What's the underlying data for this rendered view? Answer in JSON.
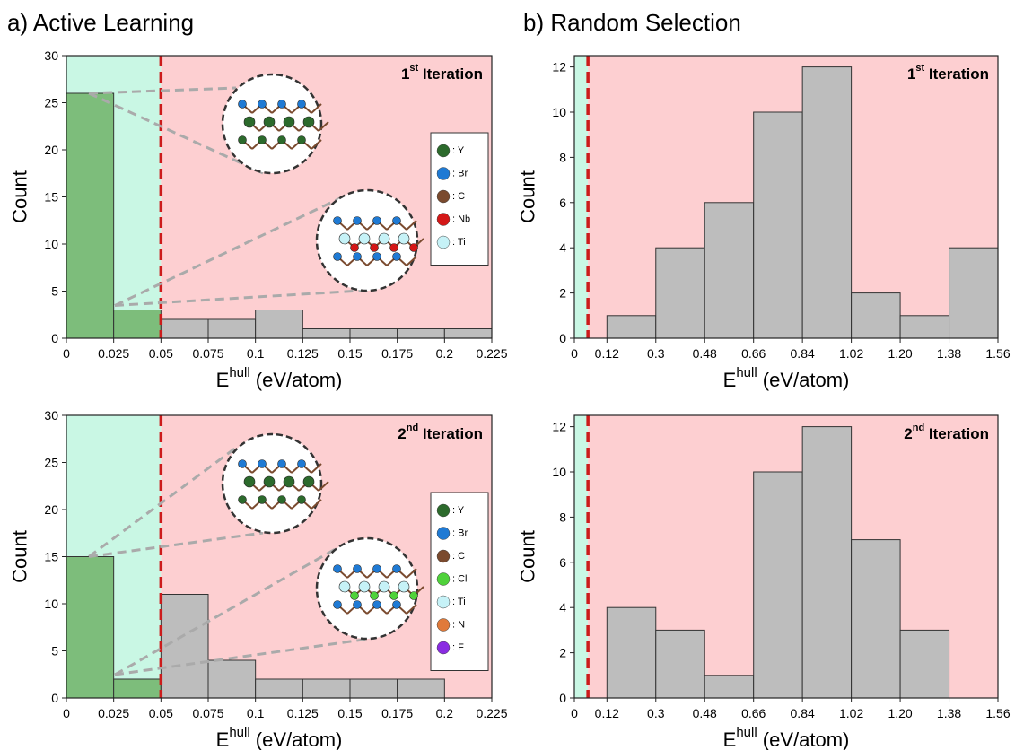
{
  "panel_titles": [
    "a) Active Learning",
    "b) Random Selection"
  ],
  "chart_data": [
    {
      "type": "histogram",
      "title": [
        "1",
        "st",
        " Iteration"
      ],
      "xlabel": [
        "E",
        "hull",
        " (eV/atom)"
      ],
      "ylabel": "Count",
      "bins": [
        0,
        0.025,
        0.05,
        0.075,
        0.1,
        0.125,
        0.15,
        0.175,
        0.2,
        0.225
      ],
      "values": [
        26,
        3,
        2,
        2,
        3,
        1,
        1,
        1,
        1
      ],
      "xlim": [
        0,
        0.225
      ],
      "xticks": [
        0,
        0.025,
        0.05,
        0.075,
        0.1,
        0.125,
        0.15,
        0.175,
        0.2,
        0.225
      ],
      "ylim": [
        0,
        30
      ],
      "yticks": [
        0,
        5,
        10,
        15,
        20,
        25,
        30
      ],
      "threshold": 0.05,
      "bar_color": "#bdbdbd",
      "below_threshold_color": "#7dbd7b",
      "stable_region_color": "#c9f7e4",
      "unstable_region_color": "#fdcfd1",
      "threshold_color": "#cc1b1b",
      "legend": [
        {
          "label": ": Y",
          "color": "#2c6a2c"
        },
        {
          "label": ": Br",
          "color": "#1f7ad4"
        },
        {
          "label": ": C",
          "color": "#7a4a2e"
        },
        {
          "label": ": Nb",
          "color": "#d41717"
        },
        {
          "label": ": Ti",
          "color": "#c6f2f7"
        }
      ]
    },
    {
      "type": "histogram",
      "title": [
        "1",
        "st",
        " Iteration"
      ],
      "xlabel": [
        "E",
        "hull",
        " (eV/atom)"
      ],
      "ylabel": "Count",
      "bins": [
        0.12,
        0.3,
        0.48,
        0.66,
        0.84,
        1.02,
        1.2,
        1.38,
        1.56
      ],
      "values": [
        1,
        4,
        6,
        10,
        12,
        2,
        1,
        4
      ],
      "xlim": [
        0,
        1.56
      ],
      "xticks": [
        0,
        0.12,
        0.3,
        0.48,
        0.66,
        0.84,
        1.02,
        {
          "value": 1.2,
          "label": "1.20"
        },
        1.38,
        1.56
      ],
      "ylim": [
        0,
        12.5
      ],
      "yticks": [
        0,
        2,
        4,
        6,
        8,
        10,
        12
      ],
      "threshold": 0.05,
      "bar_color": "#bdbdbd",
      "below_threshold_color": "#7dbd7b",
      "stable_region_color": "#c9f7e4",
      "unstable_region_color": "#fdcfd1",
      "threshold_color": "#cc1b1b"
    },
    {
      "type": "histogram",
      "title": [
        "2",
        "nd",
        " Iteration"
      ],
      "xlabel": [
        "E",
        "hull",
        " (eV/atom)"
      ],
      "ylabel": "Count",
      "bins": [
        0,
        0.025,
        0.05,
        0.075,
        0.1,
        0.125,
        0.15,
        0.175,
        0.2
      ],
      "values": [
        15,
        2,
        11,
        4,
        2,
        2,
        2,
        2
      ],
      "xlim": [
        0,
        0.225
      ],
      "xticks": [
        0,
        0.025,
        0.05,
        0.075,
        0.1,
        0.125,
        0.15,
        0.175,
        0.2,
        0.225
      ],
      "ylim": [
        0,
        30
      ],
      "yticks": [
        0,
        5,
        10,
        15,
        20,
        25,
        30
      ],
      "threshold": 0.05,
      "bar_color": "#bdbdbd",
      "below_threshold_color": "#7dbd7b",
      "stable_region_color": "#c9f7e4",
      "unstable_region_color": "#fdcfd1",
      "threshold_color": "#cc1b1b",
      "legend": [
        {
          "label": ": Y",
          "color": "#2c6a2c"
        },
        {
          "label": ": Br",
          "color": "#1f7ad4"
        },
        {
          "label": ": C",
          "color": "#7a4a2e"
        },
        {
          "label": ": Cl",
          "color": "#4fd23a"
        },
        {
          "label": ": Ti",
          "color": "#c6f2f7"
        },
        {
          "label": ": N",
          "color": "#e07a3a"
        },
        {
          "label": ": F",
          "color": "#8a2be2"
        }
      ]
    },
    {
      "type": "histogram",
      "title": [
        "2",
        "nd",
        " Iteration"
      ],
      "xlabel": [
        "E",
        "hull",
        " (eV/atom)"
      ],
      "ylabel": "Count",
      "bins": [
        0.12,
        0.3,
        0.48,
        0.66,
        0.84,
        1.02,
        1.2,
        1.38
      ],
      "values": [
        4,
        3,
        1,
        10,
        12,
        7,
        3
      ],
      "xlim": [
        0,
        1.56
      ],
      "xticks": [
        0,
        0.12,
        0.3,
        0.48,
        0.66,
        0.84,
        1.02,
        {
          "value": 1.2,
          "label": "1.20"
        },
        1.38,
        1.56
      ],
      "ylim": [
        0,
        12.5
      ],
      "yticks": [
        0,
        2,
        4,
        6,
        8,
        10,
        12
      ],
      "threshold": 0.05,
      "bar_color": "#bdbdbd",
      "below_threshold_color": "#7dbd7b",
      "stable_region_color": "#c9f7e4",
      "unstable_region_color": "#fdcfd1",
      "threshold_color": "#cc1b1b"
    }
  ]
}
